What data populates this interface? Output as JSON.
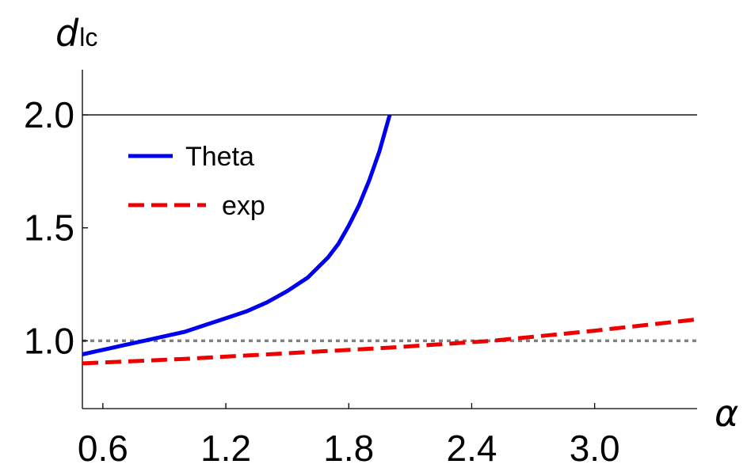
{
  "chart_data": {
    "type": "line",
    "xlabel": "α",
    "ylabel": {
      "main": "d",
      "sub": "lc"
    },
    "xlim": [
      0.5,
      3.5
    ],
    "ylim": [
      0.7,
      2.2
    ],
    "xticks": [
      {
        "value": 0.6,
        "label": "0.6"
      },
      {
        "value": 1.2,
        "label": "1.2"
      },
      {
        "value": 1.8,
        "label": "1.8"
      },
      {
        "value": 2.4,
        "label": "2.4"
      },
      {
        "value": 3.0,
        "label": "3.0"
      }
    ],
    "yticks": [
      {
        "value": 1.0,
        "label": "1.0"
      },
      {
        "value": 1.5,
        "label": "1.5"
      },
      {
        "value": 2.0,
        "label": "2.0"
      }
    ],
    "reference_lines": [
      {
        "y": 2.0,
        "color": "#000000",
        "style": "solid"
      },
      {
        "y": 1.0,
        "color": "#808080",
        "style": "dotted"
      }
    ],
    "legend_position": "top-left",
    "series": [
      {
        "name": "Theta",
        "color": "#0000ee",
        "style": "solid",
        "x": [
          0.5,
          0.6,
          0.7,
          0.8,
          0.9,
          1.0,
          1.1,
          1.2,
          1.3,
          1.4,
          1.5,
          1.6,
          1.7,
          1.75,
          1.8,
          1.85,
          1.9,
          1.95,
          2.0
        ],
        "y": [
          0.94,
          0.96,
          0.98,
          1.0,
          1.02,
          1.04,
          1.07,
          1.1,
          1.13,
          1.17,
          1.22,
          1.28,
          1.37,
          1.43,
          1.51,
          1.6,
          1.71,
          1.84,
          2.0
        ]
      },
      {
        "name": "exp",
        "color": "#ee0000",
        "style": "dashed",
        "x": [
          0.5,
          1.0,
          1.5,
          2.0,
          2.5,
          3.0,
          3.5
        ],
        "y": [
          0.9,
          0.92,
          0.945,
          0.97,
          1.0,
          1.045,
          1.095
        ]
      }
    ]
  }
}
